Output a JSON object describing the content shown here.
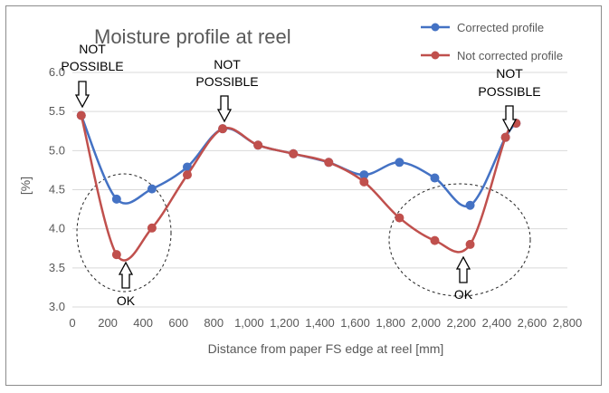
{
  "chart_data": {
    "type": "line",
    "title": "Moisture profile at reel",
    "xlabel": "Distance from paper FS edge at reel [mm]",
    "ylabel": "[%]",
    "xlim": [
      0,
      2800
    ],
    "ylim": [
      3.0,
      6.0
    ],
    "x_ticks": [
      "0",
      "200",
      "400",
      "600",
      "800",
      "1,000",
      "1,200",
      "1,400",
      "1,600",
      "1,800",
      "2,000",
      "2,200",
      "2,400",
      "2,600",
      "2,800"
    ],
    "y_ticks": [
      "3.0",
      "3.5",
      "4.0",
      "4.5",
      "5.0",
      "5.5",
      "6.0"
    ],
    "grid": true,
    "legend_position": "top-right",
    "series": [
      {
        "name": "Corrected profile",
        "color": "#4472c4",
        "x": [
          50,
          250,
          450,
          650,
          850,
          1050,
          1250,
          1450,
          1650,
          1850,
          2050,
          2250,
          2450,
          2510
        ],
        "y": [
          5.45,
          4.38,
          4.51,
          4.79,
          5.28,
          5.07,
          4.96,
          4.85,
          4.69,
          4.85,
          4.65,
          4.3,
          5.17,
          5.35
        ]
      },
      {
        "name": "Not corrected profile",
        "color": "#c0504d",
        "x": [
          50,
          250,
          450,
          650,
          850,
          1050,
          1250,
          1450,
          1650,
          1850,
          2050,
          2250,
          2450,
          2510
        ],
        "y": [
          5.45,
          3.67,
          4.01,
          4.69,
          5.28,
          5.07,
          4.96,
          4.85,
          4.6,
          4.14,
          3.85,
          3.8,
          5.17,
          5.35
        ]
      }
    ],
    "annotations": [
      {
        "text": "NOT POSSIBLE",
        "x": 60,
        "y": 5.9,
        "arrow": "down"
      },
      {
        "text": "NOT POSSIBLE",
        "x": 860,
        "y": 5.9,
        "arrow": "down"
      },
      {
        "text": "NOT POSSIBLE",
        "x": 2480,
        "y": 5.8,
        "arrow": "down"
      },
      {
        "text": "OK",
        "x": 295,
        "y": 3.3,
        "arrow": "up"
      },
      {
        "text": "OK",
        "x": 2220,
        "y": 3.3,
        "arrow": "up"
      }
    ]
  }
}
